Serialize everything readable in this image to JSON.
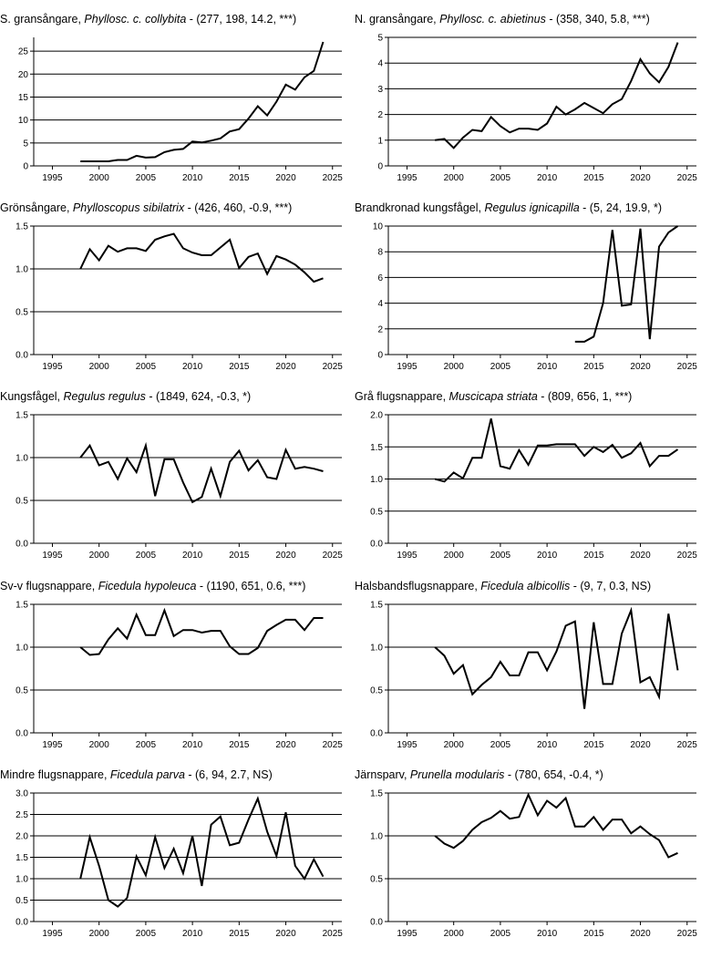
{
  "chart_data": [
    {
      "type": "line",
      "title": {
        "common": "S. gransångare, ",
        "latin": "Phyllosc. c. collybita",
        "stats": " - (277, 198, 14.2, ***)"
      },
      "xlim": [
        1993,
        2026
      ],
      "ylim": [
        0,
        28
      ],
      "yticks": [
        0,
        5,
        10,
        15,
        20,
        25
      ],
      "ytick_labels": [
        "0",
        "5",
        "10",
        "15",
        "20",
        "25"
      ],
      "xticks": [
        1995,
        2000,
        2005,
        2010,
        2015,
        2020,
        2025
      ],
      "xtick_labels": [
        "1995",
        "2000",
        "2005",
        "2010",
        "2015",
        "2020",
        "2025"
      ],
      "x": [
        1998,
        1999,
        2000,
        2001,
        2002,
        2003,
        2004,
        2005,
        2006,
        2007,
        2008,
        2009,
        2010,
        2011,
        2012,
        2013,
        2014,
        2015,
        2016,
        2017,
        2018,
        2019,
        2020,
        2021,
        2022,
        2023,
        2024
      ],
      "values": [
        1.0,
        1.0,
        1.0,
        1.0,
        1.3,
        1.3,
        2.2,
        1.8,
        1.9,
        3.0,
        3.5,
        3.7,
        5.3,
        5.1,
        5.5,
        6.0,
        7.5,
        8.0,
        10.3,
        13.0,
        11.0,
        14.0,
        17.7,
        16.6,
        19.3,
        20.7,
        27.0
      ]
    },
    {
      "type": "line",
      "title": {
        "common": "N. gransångare, ",
        "latin": "Phyllosc. c. abietinus",
        "stats": " - (358, 340, 5.8, ***)"
      },
      "xlim": [
        1993,
        2026
      ],
      "ylim": [
        0,
        5
      ],
      "yticks": [
        0,
        1,
        2,
        3,
        4,
        5
      ],
      "ytick_labels": [
        "0",
        "1",
        "2",
        "3",
        "4",
        "5"
      ],
      "xticks": [
        1995,
        2000,
        2005,
        2010,
        2015,
        2020,
        2025
      ],
      "xtick_labels": [
        "1995",
        "2000",
        "2005",
        "2010",
        "2015",
        "2020",
        "2025"
      ],
      "x": [
        1998,
        1999,
        2000,
        2001,
        2002,
        2003,
        2004,
        2005,
        2006,
        2007,
        2008,
        2009,
        2010,
        2011,
        2012,
        2013,
        2014,
        2015,
        2016,
        2017,
        2018,
        2019,
        2020,
        2021,
        2022,
        2023,
        2024
      ],
      "values": [
        1.0,
        1.05,
        0.7,
        1.1,
        1.4,
        1.35,
        1.9,
        1.55,
        1.3,
        1.45,
        1.45,
        1.4,
        1.65,
        2.3,
        2.0,
        2.2,
        2.45,
        2.25,
        2.05,
        2.4,
        2.6,
        3.3,
        4.15,
        3.6,
        3.25,
        3.85,
        4.8
      ]
    },
    {
      "type": "line",
      "title": {
        "common": "Grönsångare, ",
        "latin": "Phylloscopus sibilatrix",
        "stats": " - (426, 460, -0.9, ***)"
      },
      "xlim": [
        1993,
        2026
      ],
      "ylim": [
        0,
        1.5
      ],
      "yticks": [
        0,
        0.5,
        1.0,
        1.5
      ],
      "ytick_labels": [
        "0.0",
        "0.5",
        "1.0",
        "1.5"
      ],
      "xticks": [
        1995,
        2000,
        2005,
        2010,
        2015,
        2020,
        2025
      ],
      "xtick_labels": [
        "1995",
        "2000",
        "2005",
        "2010",
        "2015",
        "2020",
        "2025"
      ],
      "x": [
        1998,
        1999,
        2000,
        2001,
        2002,
        2003,
        2004,
        2005,
        2006,
        2007,
        2008,
        2009,
        2010,
        2011,
        2012,
        2013,
        2014,
        2015,
        2016,
        2017,
        2018,
        2019,
        2020,
        2021,
        2022,
        2023,
        2024
      ],
      "values": [
        1.0,
        1.23,
        1.1,
        1.27,
        1.2,
        1.24,
        1.24,
        1.21,
        1.34,
        1.38,
        1.41,
        1.24,
        1.19,
        1.16,
        1.16,
        1.25,
        1.34,
        1.01,
        1.14,
        1.18,
        0.94,
        1.15,
        1.11,
        1.05,
        0.96,
        0.85,
        0.89
      ]
    },
    {
      "type": "line",
      "title": {
        "common": "Brandkronad kungsfågel, ",
        "latin": "Regulus ignicapilla",
        "stats": " - (5, 24, 19.9, *)"
      },
      "xlim": [
        1993,
        2026
      ],
      "ylim": [
        0,
        10
      ],
      "yticks": [
        0,
        2,
        4,
        6,
        8,
        10
      ],
      "ytick_labels": [
        "0",
        "2",
        "4",
        "6",
        "8",
        "10"
      ],
      "xticks": [
        1995,
        2000,
        2005,
        2010,
        2015,
        2020,
        2025
      ],
      "xtick_labels": [
        "1995",
        "2000",
        "2005",
        "2010",
        "2015",
        "2020",
        "2025"
      ],
      "x": [
        2013,
        2014,
        2015,
        2016,
        2017,
        2018,
        2019,
        2020,
        2021,
        2022,
        2023,
        2024
      ],
      "values": [
        1.0,
        1.0,
        1.4,
        4.0,
        9.7,
        3.8,
        3.9,
        9.8,
        1.2,
        8.4,
        9.5,
        10.0
      ]
    },
    {
      "type": "line",
      "title": {
        "common": "Kungsfågel, ",
        "latin": "Regulus regulus",
        "stats": " - (1849, 624, -0.3, *)"
      },
      "xlim": [
        1993,
        2026
      ],
      "ylim": [
        0,
        1.5
      ],
      "yticks": [
        0,
        0.5,
        1.0,
        1.5
      ],
      "ytick_labels": [
        "0.0",
        "0.5",
        "1.0",
        "1.5"
      ],
      "xticks": [
        1995,
        2000,
        2005,
        2010,
        2015,
        2020,
        2025
      ],
      "xtick_labels": [
        "1995",
        "2000",
        "2005",
        "2010",
        "2015",
        "2020",
        "2025"
      ],
      "x": [
        1998,
        1999,
        2000,
        2001,
        2002,
        2003,
        2004,
        2005,
        2006,
        2007,
        2008,
        2009,
        2010,
        2011,
        2012,
        2013,
        2014,
        2015,
        2016,
        2017,
        2018,
        2019,
        2020,
        2021,
        2022,
        2023,
        2024
      ],
      "values": [
        1.0,
        1.14,
        0.91,
        0.95,
        0.75,
        0.99,
        0.83,
        1.14,
        0.55,
        0.98,
        0.98,
        0.71,
        0.48,
        0.54,
        0.87,
        0.55,
        0.95,
        1.08,
        0.85,
        0.97,
        0.77,
        0.75,
        1.09,
        0.87,
        0.89,
        0.87,
        0.84
      ]
    },
    {
      "type": "line",
      "title": {
        "common": "Grå flugsnappare, ",
        "latin": "Muscicapa striata",
        "stats": " - (809, 656, 1, ***)"
      },
      "xlim": [
        1993,
        2026
      ],
      "ylim": [
        0,
        2.0
      ],
      "yticks": [
        0,
        0.5,
        1.0,
        1.5,
        2.0
      ],
      "ytick_labels": [
        "0.0",
        "0.5",
        "1.0",
        "1.5",
        "2.0"
      ],
      "xticks": [
        1995,
        2000,
        2005,
        2010,
        2015,
        2020,
        2025
      ],
      "xtick_labels": [
        "1995",
        "2000",
        "2005",
        "2010",
        "2015",
        "2020",
        "2025"
      ],
      "x": [
        1998,
        1999,
        2000,
        2001,
        2002,
        2003,
        2004,
        2005,
        2006,
        2007,
        2008,
        2009,
        2010,
        2011,
        2012,
        2013,
        2014,
        2015,
        2016,
        2017,
        2018,
        2019,
        2020,
        2021,
        2022,
        2023,
        2024
      ],
      "values": [
        1.0,
        0.96,
        1.1,
        1.01,
        1.33,
        1.33,
        1.94,
        1.2,
        1.16,
        1.45,
        1.22,
        1.52,
        1.52,
        1.54,
        1.54,
        1.54,
        1.36,
        1.5,
        1.42,
        1.53,
        1.33,
        1.4,
        1.56,
        1.2,
        1.36,
        1.36,
        1.46
      ]
    },
    {
      "type": "line",
      "title": {
        "common": "Sv-v flugsnappare, ",
        "latin": "Ficedula hypoleuca",
        "stats": " - (1190, 651, 0.6, ***)"
      },
      "xlim": [
        1993,
        2026
      ],
      "ylim": [
        0,
        1.5
      ],
      "yticks": [
        0,
        0.5,
        1.0,
        1.5
      ],
      "ytick_labels": [
        "0.0",
        "0.5",
        "1.0",
        "1.5"
      ],
      "xticks": [
        1995,
        2000,
        2005,
        2010,
        2015,
        2020,
        2025
      ],
      "xtick_labels": [
        "1995",
        "2000",
        "2005",
        "2010",
        "2015",
        "2020",
        "2025"
      ],
      "x": [
        1998,
        1999,
        2000,
        2001,
        2002,
        2003,
        2004,
        2005,
        2006,
        2007,
        2008,
        2009,
        2010,
        2011,
        2012,
        2013,
        2014,
        2015,
        2016,
        2017,
        2018,
        2019,
        2020,
        2021,
        2022,
        2023,
        2024
      ],
      "values": [
        1.0,
        0.91,
        0.92,
        1.09,
        1.22,
        1.1,
        1.38,
        1.14,
        1.14,
        1.43,
        1.13,
        1.2,
        1.2,
        1.17,
        1.19,
        1.19,
        1.01,
        0.92,
        0.92,
        0.99,
        1.19,
        1.26,
        1.32,
        1.32,
        1.2,
        1.34,
        1.34
      ]
    },
    {
      "type": "line",
      "title": {
        "common": "Halsbandsflugsnappare, ",
        "latin": "Ficedula albicollis",
        "stats": " - (9, 7, 0.3, NS)"
      },
      "xlim": [
        1993,
        2026
      ],
      "ylim": [
        0,
        1.5
      ],
      "yticks": [
        0,
        0.5,
        1.0,
        1.5
      ],
      "ytick_labels": [
        "0.0",
        "0.5",
        "1.0",
        "1.5"
      ],
      "xticks": [
        1995,
        2000,
        2005,
        2010,
        2015,
        2020,
        2025
      ],
      "xtick_labels": [
        "1995",
        "2000",
        "2005",
        "2010",
        "2015",
        "2020",
        "2025"
      ],
      "x": [
        1998,
        1999,
        2000,
        2001,
        2002,
        2003,
        2004,
        2005,
        2006,
        2007,
        2008,
        2009,
        2010,
        2011,
        2012,
        2013,
        2014,
        2015,
        2016,
        2017,
        2018,
        2019,
        2020,
        2021,
        2022,
        2023,
        2024
      ],
      "values": [
        1.0,
        0.9,
        0.69,
        0.79,
        0.45,
        0.56,
        0.65,
        0.83,
        0.67,
        0.67,
        0.94,
        0.94,
        0.73,
        0.95,
        1.25,
        1.3,
        0.28,
        1.29,
        0.57,
        0.57,
        1.16,
        1.43,
        0.59,
        0.65,
        0.42,
        1.39,
        0.73
      ]
    },
    {
      "type": "line",
      "title": {
        "common": "Mindre flugsnappare, ",
        "latin": "Ficedula parva",
        "stats": " - (6, 94, 2.7, NS)"
      },
      "xlim": [
        1993,
        2026
      ],
      "ylim": [
        0,
        3.0
      ],
      "yticks": [
        0,
        0.5,
        1.0,
        1.5,
        2.0,
        2.5,
        3.0
      ],
      "ytick_labels": [
        "0.0",
        "0.5",
        "1.0",
        "1.5",
        "2.0",
        "2.5",
        "3.0"
      ],
      "xticks": [
        1995,
        2000,
        2005,
        2010,
        2015,
        2020,
        2025
      ],
      "xtick_labels": [
        "1995",
        "2000",
        "2005",
        "2010",
        "2015",
        "2020",
        "2025"
      ],
      "x": [
        1998,
        1999,
        2000,
        2001,
        2002,
        2003,
        2004,
        2005,
        2006,
        2007,
        2008,
        2009,
        2010,
        2011,
        2012,
        2013,
        2014,
        2015,
        2016,
        2017,
        2018,
        2019,
        2020,
        2021,
        2022,
        2023,
        2024
      ],
      "values": [
        1.0,
        1.97,
        1.3,
        0.5,
        0.35,
        0.55,
        1.52,
        1.08,
        1.97,
        1.25,
        1.7,
        1.13,
        2.0,
        0.83,
        2.26,
        2.45,
        1.78,
        1.84,
        2.38,
        2.87,
        2.1,
        1.53,
        2.55,
        1.3,
        1.0,
        1.45,
        1.05
      ]
    },
    {
      "type": "line",
      "title": {
        "common": "Järnsparv, ",
        "latin": "Prunella modularis",
        "stats": " - (780, 654, -0.4, *)"
      },
      "xlim": [
        1993,
        2026
      ],
      "ylim": [
        0,
        1.5
      ],
      "yticks": [
        0,
        0.5,
        1.0,
        1.5
      ],
      "ytick_labels": [
        "0.0",
        "0.5",
        "1.0",
        "1.5"
      ],
      "xticks": [
        1995,
        2000,
        2005,
        2010,
        2015,
        2020,
        2025
      ],
      "xtick_labels": [
        "1995",
        "2000",
        "2005",
        "2010",
        "2015",
        "2020",
        "2025"
      ],
      "x": [
        1998,
        1999,
        2000,
        2001,
        2002,
        2003,
        2004,
        2005,
        2006,
        2007,
        2008,
        2009,
        2010,
        2011,
        2012,
        2013,
        2014,
        2015,
        2016,
        2017,
        2018,
        2019,
        2020,
        2021,
        2022,
        2023,
        2024
      ],
      "values": [
        1.0,
        0.91,
        0.86,
        0.94,
        1.07,
        1.16,
        1.21,
        1.29,
        1.2,
        1.22,
        1.48,
        1.24,
        1.41,
        1.33,
        1.44,
        1.11,
        1.11,
        1.22,
        1.07,
        1.19,
        1.19,
        1.03,
        1.11,
        1.02,
        0.95,
        0.75,
        0.8
      ]
    }
  ]
}
